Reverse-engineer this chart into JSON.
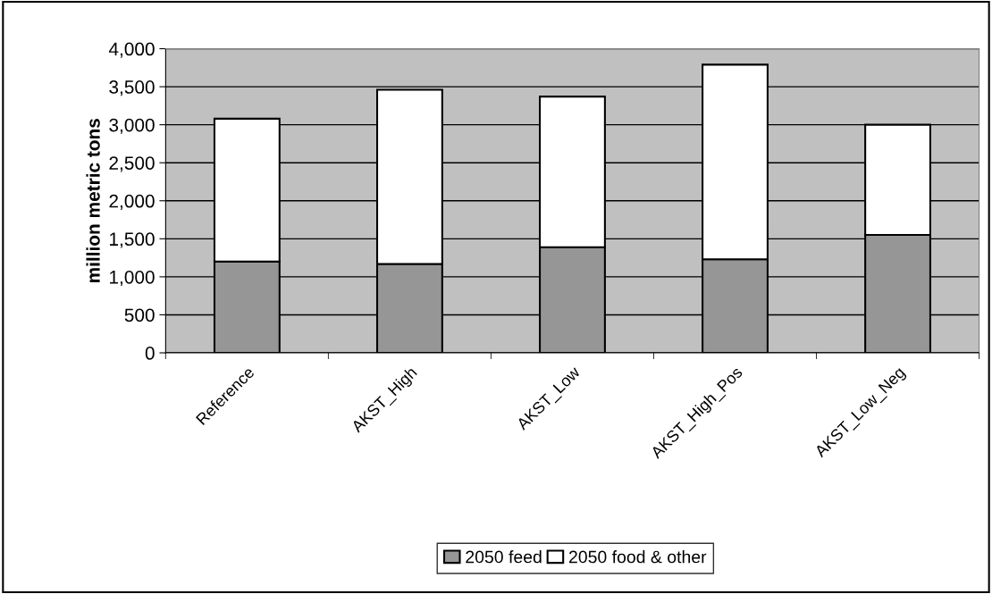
{
  "chart_data": {
    "type": "bar",
    "stacked": true,
    "ylabel": "million metric tons",
    "categories": [
      "Reference",
      "AKST_High",
      "AKST_Low",
      "AKST_High_Pos",
      "AKST_Low_Neg"
    ],
    "series": [
      {
        "name": "2050 feed",
        "color": "#969696",
        "values": [
          1200,
          1170,
          1390,
          1230,
          1550
        ]
      },
      {
        "name": "2050 food & other",
        "color": "#ffffff",
        "values": [
          1880,
          2290,
          1980,
          2560,
          1450
        ]
      }
    ],
    "ylim": [
      0,
      4000
    ],
    "yticks": [
      {
        "value": 0,
        "label": "0"
      },
      {
        "value": 500,
        "label": "500"
      },
      {
        "value": 1000,
        "label": "1,000"
      },
      {
        "value": 1500,
        "label": "1,500"
      },
      {
        "value": 2000,
        "label": "2,000"
      },
      {
        "value": 2500,
        "label": "2,500"
      },
      {
        "value": 3000,
        "label": "3,000"
      },
      {
        "value": 3500,
        "label": "3,500"
      },
      {
        "value": 4000,
        "label": "4,000"
      }
    ],
    "grid": "y",
    "legend": "bottom"
  }
}
